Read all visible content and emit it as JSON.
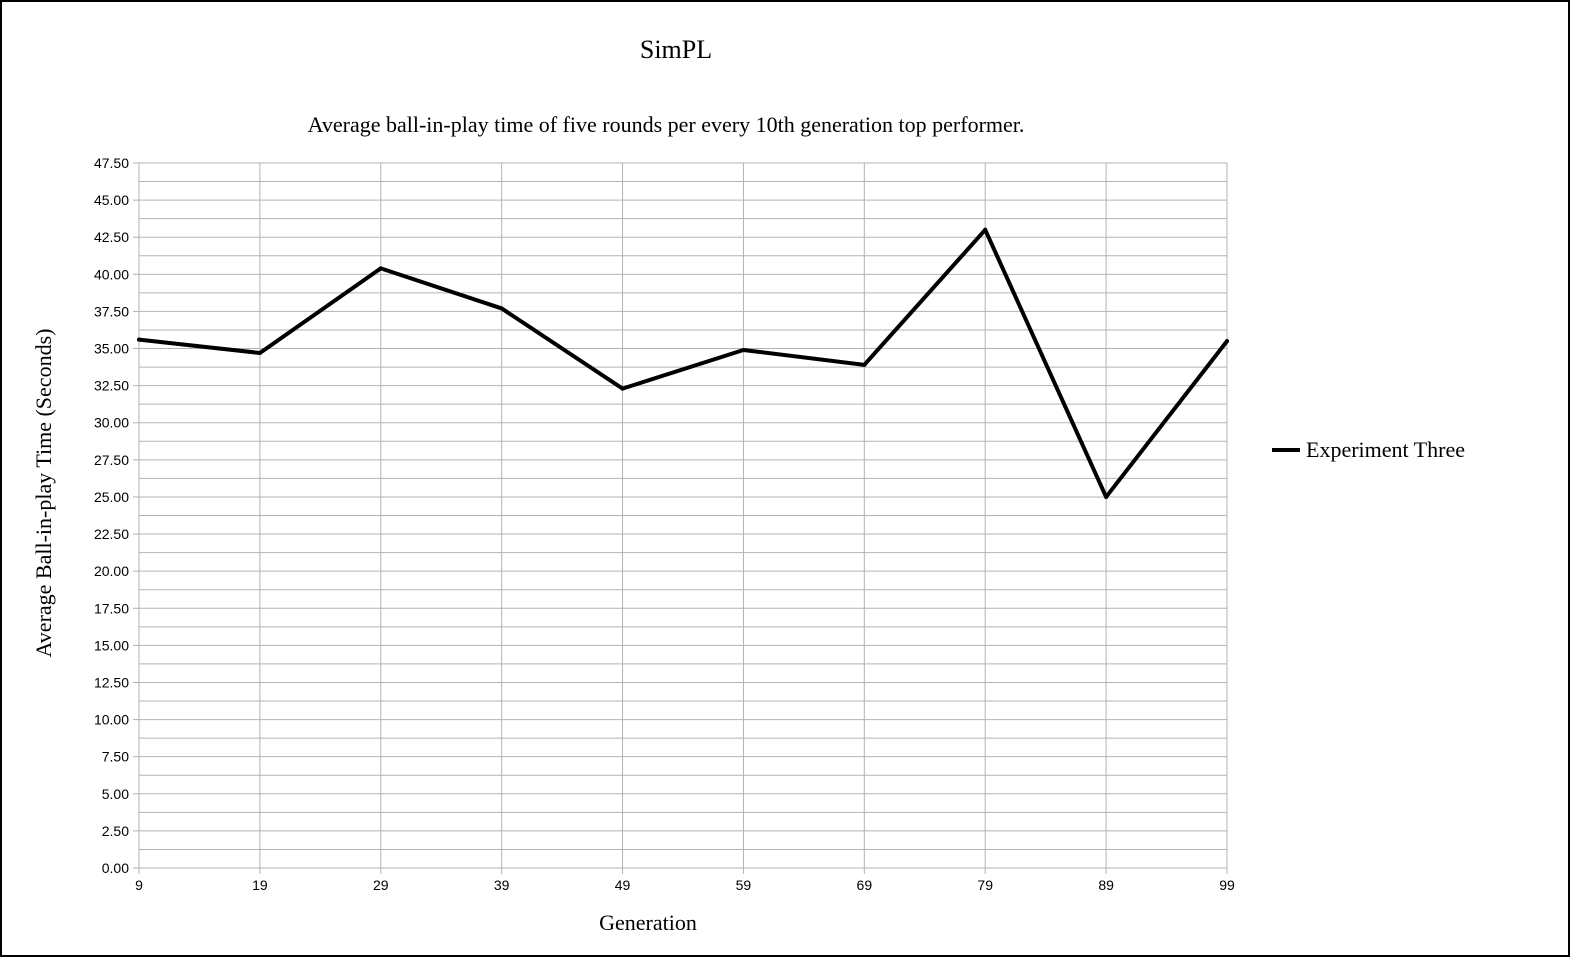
{
  "chart_data": {
    "type": "line",
    "title": "SimPL",
    "subtitle": "Average ball-in-play time of five rounds per every 10th generation top performer.",
    "xlabel": "Generation",
    "ylabel": "Average Ball-in-play Time (Seconds)",
    "categories": [
      "9",
      "19",
      "29",
      "39",
      "49",
      "59",
      "69",
      "79",
      "89",
      "99"
    ],
    "ylim": [
      0,
      47.5
    ],
    "y_major_step": 2.5,
    "y_tick_labels": [
      "0.00",
      "2.50",
      "5.00",
      "7.50",
      "10.00",
      "12.50",
      "15.00",
      "17.50",
      "20.00",
      "22.50",
      "25.00",
      "27.50",
      "30.00",
      "32.50",
      "35.00",
      "37.50",
      "40.00",
      "42.50",
      "45.00",
      "47.50"
    ],
    "grid": true,
    "legend_position": "right",
    "series": [
      {
        "name": "Experiment Three",
        "color": "#000000",
        "values": [
          35.6,
          34.7,
          40.4,
          37.7,
          32.3,
          34.9,
          33.9,
          43.0,
          25.0,
          35.5
        ]
      }
    ]
  }
}
